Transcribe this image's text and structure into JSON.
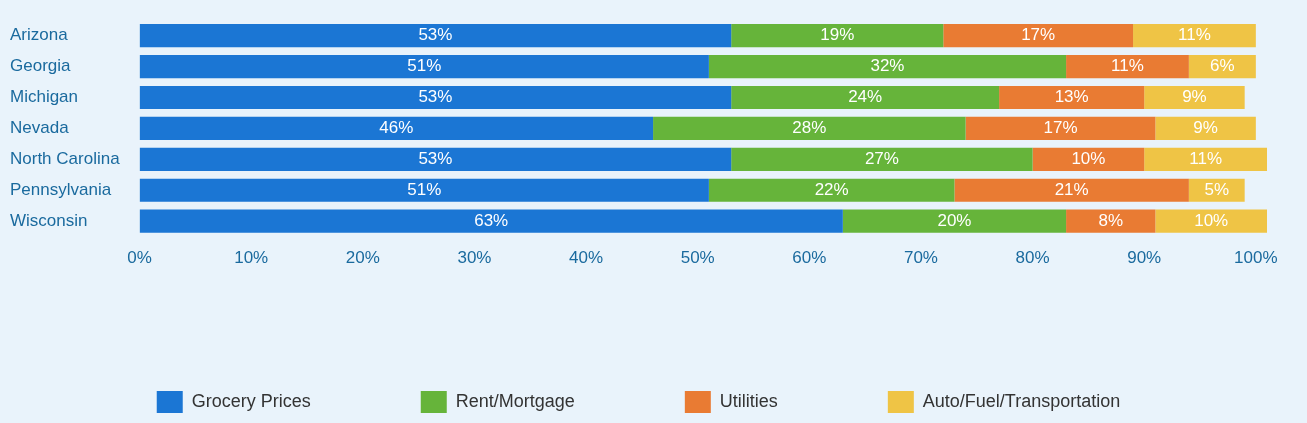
{
  "chart_data": {
    "type": "bar",
    "orientation": "horizontal",
    "stacked": true,
    "categories": [
      "Arizona",
      "Georgia",
      "Michigan",
      "Nevada",
      "North Carolina",
      "Pennsylvania",
      "Wisconsin"
    ],
    "series": [
      {
        "name": "Grocery Prices",
        "color": "#1b76d4",
        "values": [
          53,
          51,
          53,
          46,
          53,
          51,
          63
        ],
        "value_labels": [
          "53%",
          "51%",
          "53%",
          "46%",
          "53%",
          "51%",
          "63%"
        ]
      },
      {
        "name": "Rent/Mortgage",
        "color": "#66b43a",
        "values": [
          19,
          32,
          24,
          28,
          27,
          22,
          20
        ],
        "value_labels": [
          "19%",
          "32%",
          "24%",
          "28%",
          "27%",
          "22%",
          "20%"
        ]
      },
      {
        "name": "Utilities",
        "color": "#e97b33",
        "values": [
          17,
          11,
          13,
          17,
          10,
          21,
          8
        ],
        "value_labels": [
          "17%",
          "11%",
          "13%",
          "17%",
          "10%",
          "21%",
          "8%"
        ]
      },
      {
        "name": "Auto/Fuel/Transportation",
        "color": "#efc445",
        "values": [
          11,
          6,
          9,
          9,
          11,
          5,
          10
        ],
        "value_labels": [
          "11%",
          "6%",
          "9%",
          "9%",
          "11%",
          "5%",
          "10%"
        ]
      }
    ],
    "xlim": [
      0,
      101
    ],
    "xticks": [
      {
        "value": 0,
        "label": "0%"
      },
      {
        "value": 10,
        "label": "10%"
      },
      {
        "value": 20,
        "label": "20%"
      },
      {
        "value": 30,
        "label": "30%"
      },
      {
        "value": 40,
        "label": "40%"
      },
      {
        "value": 50,
        "label": "50%"
      },
      {
        "value": 60,
        "label": "60%"
      },
      {
        "value": 70,
        "label": "70%"
      },
      {
        "value": 80,
        "label": "80%"
      },
      {
        "value": 90,
        "label": "90%"
      },
      {
        "value": 100,
        "label": "100%"
      }
    ],
    "grid": false,
    "legend": "bottom"
  }
}
